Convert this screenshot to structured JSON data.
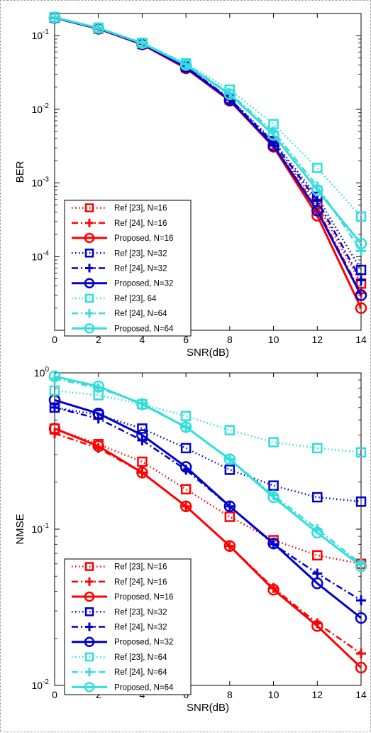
{
  "chart_data": [
    {
      "type": "line",
      "ylabel": "BER",
      "xlabel": "SNR(dB)",
      "yscale": "log",
      "xlim": [
        0,
        14
      ],
      "ylim": [
        1e-05,
        0.2
      ],
      "x_ticks": [
        "0",
        "2",
        "4",
        "6",
        "8",
        "10",
        "12",
        "14"
      ],
      "y_ticks": [
        {
          "value": 0.1,
          "base": "10",
          "exp": "-1"
        },
        {
          "value": 0.01,
          "base": "10",
          "exp": "-2"
        },
        {
          "value": 0.001,
          "base": "10",
          "exp": "-3"
        },
        {
          "value": 0.0001,
          "base": "10",
          "exp": "-4"
        }
      ],
      "grid": false,
      "legend": "bottom-left",
      "x": [
        0,
        2,
        4,
        6,
        8,
        10,
        12,
        14
      ],
      "series": [
        {
          "name": "Ref [23], N=16",
          "color": "#ff0000",
          "style": "dotted",
          "marker": "square",
          "values": [
            0.175,
            0.125,
            0.077,
            0.037,
            0.0135,
            0.0033,
            0.00052,
            4.3e-05
          ]
        },
        {
          "name": "Ref [24], N=16",
          "color": "#ff0000",
          "style": "dashdot",
          "marker": "plus",
          "values": [
            0.175,
            0.125,
            0.077,
            0.037,
            0.0135,
            0.0032,
            0.00045,
            3.2e-05
          ]
        },
        {
          "name": "Proposed, N=16",
          "color": "#ff0000",
          "style": "solid",
          "marker": "circle",
          "values": [
            0.175,
            0.124,
            0.076,
            0.036,
            0.0131,
            0.0031,
            0.00036,
            2e-05
          ]
        },
        {
          "name": "Ref [23], N=32",
          "color": "#0000cc",
          "style": "dotted",
          "marker": "square",
          "values": [
            0.176,
            0.126,
            0.078,
            0.038,
            0.014,
            0.0037,
            0.00065,
            6.6e-05
          ]
        },
        {
          "name": "Ref [24], N=32",
          "color": "#0000cc",
          "style": "dashdot",
          "marker": "plus",
          "values": [
            0.176,
            0.126,
            0.078,
            0.038,
            0.0139,
            0.0035,
            0.00058,
            4.8e-05
          ]
        },
        {
          "name": "Proposed, N=32",
          "color": "#0000cc",
          "style": "solid",
          "marker": "circle",
          "values": [
            0.175,
            0.125,
            0.077,
            0.037,
            0.0134,
            0.0032,
            0.00042,
            3e-05
          ]
        },
        {
          "name": "Ref [23], 64",
          "color": "#33dddd",
          "style": "dotted",
          "marker": "square",
          "values": [
            0.178,
            0.128,
            0.08,
            0.042,
            0.0185,
            0.0063,
            0.0016,
            0.00035
          ]
        },
        {
          "name": "Ref [24], N=64",
          "color": "#33dddd",
          "style": "dashdot",
          "marker": "plus",
          "values": [
            0.178,
            0.127,
            0.08,
            0.041,
            0.0165,
            0.005,
            0.0009,
            0.00012
          ]
        },
        {
          "name": "Proposed, N=64",
          "color": "#33dddd",
          "style": "solid",
          "marker": "circle",
          "values": [
            0.177,
            0.127,
            0.079,
            0.04,
            0.016,
            0.0045,
            0.0008,
            0.00015
          ]
        }
      ]
    },
    {
      "type": "line",
      "ylabel": "NMSE",
      "xlabel": "SNR(dB)",
      "yscale": "log",
      "xlim": [
        0,
        14
      ],
      "ylim": [
        0.01,
        1
      ],
      "x_ticks": [
        "0",
        "2",
        "4",
        "6",
        "8",
        "10",
        "12",
        "14"
      ],
      "y_ticks": [
        {
          "value": 1,
          "base": "10",
          "exp": "0"
        },
        {
          "value": 0.1,
          "base": "10",
          "exp": "-1"
        },
        {
          "value": 0.01,
          "base": "10",
          "exp": "-2"
        }
      ],
      "grid": false,
      "legend": "bottom-left",
      "x": [
        0,
        2,
        4,
        6,
        8,
        10,
        12,
        14
      ],
      "series": [
        {
          "name": "Ref [23], N=16",
          "color": "#ff0000",
          "style": "dotted",
          "marker": "square",
          "values": [
            0.44,
            0.35,
            0.27,
            0.18,
            0.12,
            0.085,
            0.068,
            0.06
          ]
        },
        {
          "name": "Ref [24], N=16",
          "color": "#ff0000",
          "style": "dashdot",
          "marker": "plus",
          "values": [
            0.41,
            0.33,
            0.23,
            0.14,
            0.078,
            0.042,
            0.025,
            0.016
          ]
        },
        {
          "name": "Proposed, N=16",
          "color": "#ff0000",
          "style": "solid",
          "marker": "circle",
          "values": [
            0.44,
            0.34,
            0.23,
            0.14,
            0.078,
            0.041,
            0.024,
            0.013
          ]
        },
        {
          "name": "Ref [23], N=32",
          "color": "#0000cc",
          "style": "dotted",
          "marker": "square",
          "values": [
            0.6,
            0.54,
            0.44,
            0.33,
            0.24,
            0.19,
            0.16,
            0.15
          ]
        },
        {
          "name": "Ref [24], N=32",
          "color": "#0000cc",
          "style": "dashdot",
          "marker": "plus",
          "values": [
            0.6,
            0.51,
            0.37,
            0.24,
            0.14,
            0.08,
            0.052,
            0.035
          ]
        },
        {
          "name": "Proposed, N=32",
          "color": "#0000cc",
          "style": "solid",
          "marker": "circle",
          "values": [
            0.67,
            0.55,
            0.4,
            0.25,
            0.14,
            0.081,
            0.045,
            0.027
          ]
        },
        {
          "name": "Ref [23], N=64",
          "color": "#33dddd",
          "style": "dotted",
          "marker": "square",
          "values": [
            0.77,
            0.72,
            0.63,
            0.53,
            0.43,
            0.36,
            0.33,
            0.31
          ]
        },
        {
          "name": "Ref [24], N=64",
          "color": "#33dddd",
          "style": "dashdot",
          "marker": "plus",
          "values": [
            0.92,
            0.8,
            0.64,
            0.45,
            0.28,
            0.165,
            0.1,
            0.06
          ]
        },
        {
          "name": "Proposed, N=64",
          "color": "#33dddd",
          "style": "solid",
          "marker": "circle",
          "values": [
            0.95,
            0.82,
            0.63,
            0.45,
            0.28,
            0.16,
            0.095,
            0.058
          ]
        }
      ]
    }
  ]
}
